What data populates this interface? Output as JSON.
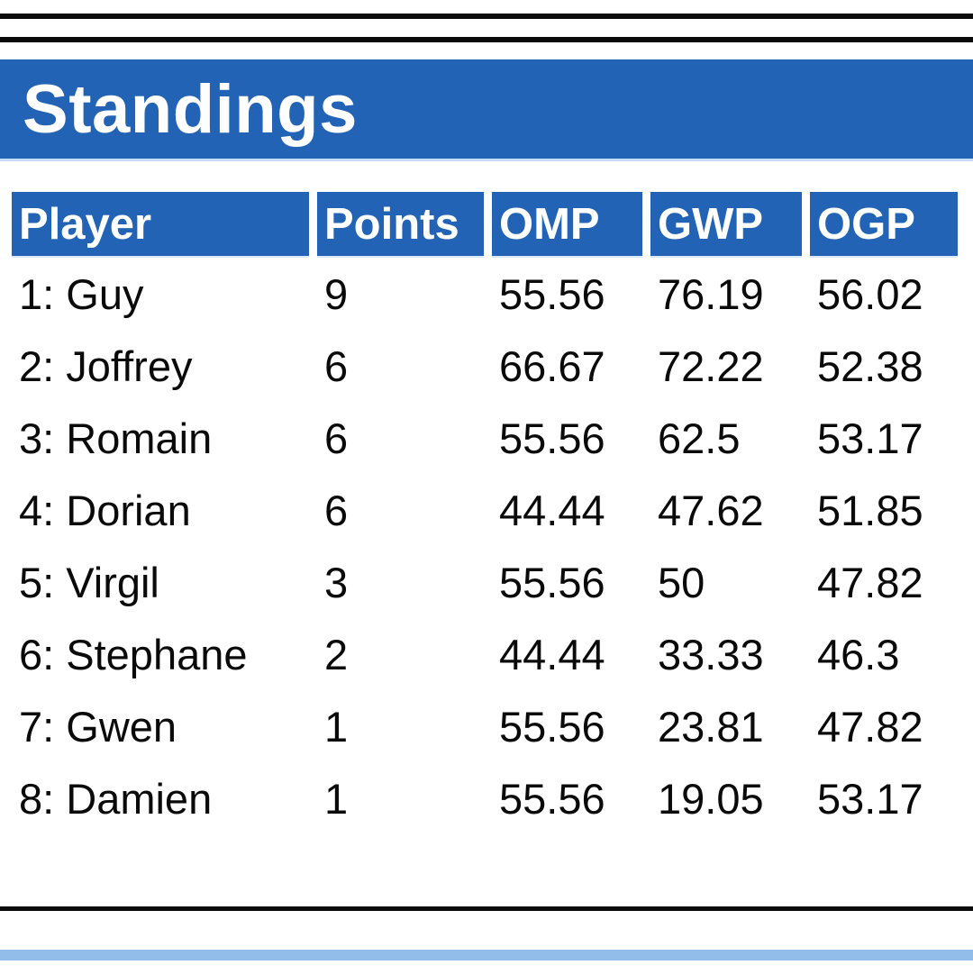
{
  "title_bar": {
    "label": "Standings"
  },
  "table": {
    "columns": [
      {
        "key": "player",
        "label": "Player"
      },
      {
        "key": "points",
        "label": "Points"
      },
      {
        "key": "omp",
        "label": "OMP"
      },
      {
        "key": "gwp",
        "label": "GWP"
      },
      {
        "key": "ogp",
        "label": "OGP"
      }
    ],
    "rows": [
      {
        "player": "1: Guy",
        "points": "9",
        "omp": "55.56",
        "gwp": "76.19",
        "ogp": "56.02"
      },
      {
        "player": "2: Joffrey",
        "points": "6",
        "omp": "66.67",
        "gwp": "72.22",
        "ogp": "52.38"
      },
      {
        "player": "3: Romain",
        "points": "6",
        "omp": "55.56",
        "gwp": "62.5",
        "ogp": "53.17"
      },
      {
        "player": "4: Dorian",
        "points": "6",
        "omp": "44.44",
        "gwp": "47.62",
        "ogp": "51.85"
      },
      {
        "player": "5: Virgil",
        "points": "3",
        "omp": "55.56",
        "gwp": "50",
        "ogp": "47.82"
      },
      {
        "player": "6: Stephane",
        "points": "2",
        "omp": "44.44",
        "gwp": "33.33",
        "ogp": "46.3"
      },
      {
        "player": "7: Gwen",
        "points": "1",
        "omp": "55.56",
        "gwp": "23.81",
        "ogp": "47.82"
      },
      {
        "player": "8: Damien",
        "points": "1",
        "omp": "55.56",
        "gwp": "19.05",
        "ogp": "53.17"
      }
    ]
  },
  "colors": {
    "header_blue": "#2263b6",
    "bottom_accent_light_blue": "#92bce9",
    "rule_black": "#0a0a0a",
    "header_text": "#ffffff",
    "body_text": "#0a0a0a"
  }
}
